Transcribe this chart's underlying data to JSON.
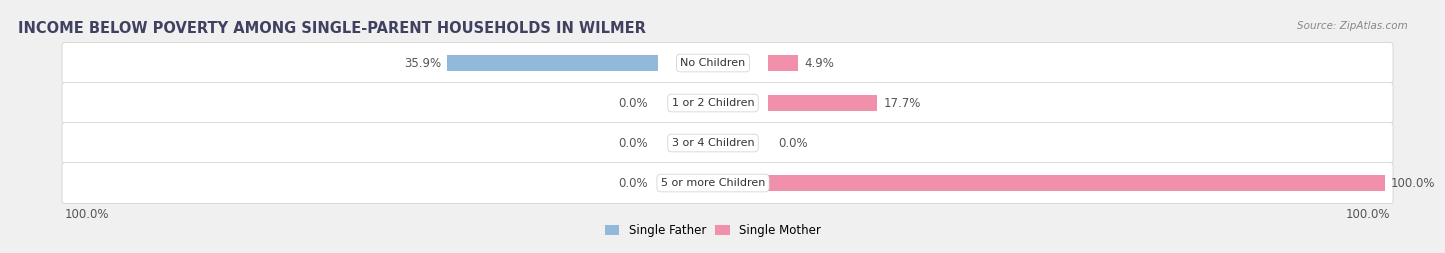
{
  "title": "INCOME BELOW POVERTY AMONG SINGLE-PARENT HOUSEHOLDS IN WILMER",
  "source": "Source: ZipAtlas.com",
  "categories": [
    "No Children",
    "1 or 2 Children",
    "3 or 4 Children",
    "5 or more Children"
  ],
  "single_father": [
    35.9,
    0.0,
    0.0,
    0.0
  ],
  "single_mother": [
    4.9,
    17.7,
    0.0,
    100.0
  ],
  "father_color": "#92b9d9",
  "mother_color": "#f090aa",
  "father_label": "Single Father",
  "mother_label": "Single Mother",
  "max_val": 100.0,
  "left_label": "100.0%",
  "right_label": "100.0%",
  "bg_color": "#f0f0f0",
  "row_bg_color_light": "#e8e8ea",
  "row_bg_color_dark": "#d8d8dc",
  "title_color": "#404060",
  "source_color": "#888888",
  "label_color": "#555555",
  "value_fontsize": 8.5,
  "cat_fontsize": 8.0,
  "title_fontsize": 10.5,
  "source_fontsize": 7.5,
  "legend_fontsize": 8.5
}
